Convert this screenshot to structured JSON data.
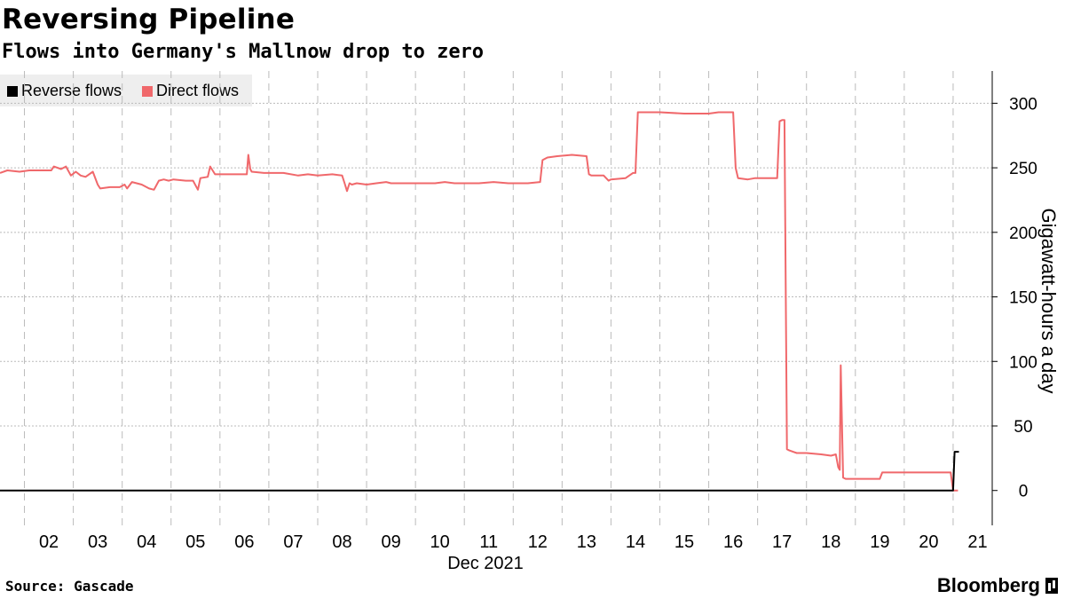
{
  "header": {
    "title": "Reversing Pipeline",
    "subtitle": "Flows into Germany's Mallnow drop to zero"
  },
  "footer": {
    "source": "Source: Gascade",
    "brand": "Bloomberg"
  },
  "colors": {
    "reverse": "#000000",
    "direct": "#f0686b",
    "grid": "#bbbbbb",
    "legend_bg": "#eeeeee"
  },
  "chart_data": {
    "type": "line",
    "title": "Reversing Pipeline",
    "subtitle": "Flows into Germany's Mallnow drop to zero",
    "xlabel": "Dec 2021",
    "ylabel": "Gigawatt-hours a day",
    "x_unit": "day of December 2021",
    "xlim": [
      1.5,
      21.8
    ],
    "ylim": [
      -27,
      325
    ],
    "y_ticks": [
      0,
      50,
      100,
      150,
      200,
      250,
      300
    ],
    "x_ticks": [
      2,
      3,
      4,
      5,
      6,
      7,
      8,
      9,
      10,
      11,
      12,
      13,
      14,
      15,
      16,
      17,
      18,
      19,
      20,
      21
    ],
    "x_tick_labels": [
      "02",
      "03",
      "04",
      "05",
      "06",
      "07",
      "08",
      "09",
      "10",
      "11",
      "12",
      "13",
      "14",
      "15",
      "16",
      "17",
      "18",
      "19",
      "20",
      "21"
    ],
    "grid": true,
    "legend_position": "top-left",
    "series": [
      {
        "name": "Reverse flows",
        "color": "#000000",
        "x": [
          1.5,
          20.95,
          21.0,
          21.03,
          21.12
        ],
        "y": [
          0,
          0,
          0,
          30,
          30
        ]
      },
      {
        "name": "Direct flows",
        "color": "#f0686b",
        "x": [
          1.5,
          1.65,
          1.9,
          2.1,
          2.3,
          2.55,
          2.6,
          2.75,
          2.85,
          2.95,
          3.05,
          3.15,
          3.25,
          3.4,
          3.5,
          3.55,
          3.75,
          3.95,
          4.05,
          4.1,
          4.2,
          4.4,
          4.55,
          4.65,
          4.75,
          4.85,
          4.95,
          5.05,
          5.3,
          5.45,
          5.55,
          5.6,
          5.75,
          5.8,
          5.9,
          6.05,
          6.3,
          6.55,
          6.58,
          6.62,
          6.65,
          6.9,
          7.3,
          7.6,
          7.8,
          8.0,
          8.3,
          8.5,
          8.55,
          8.6,
          8.65,
          8.7,
          8.8,
          9.0,
          9.2,
          9.4,
          9.5,
          9.8,
          10.1,
          10.4,
          10.6,
          10.8,
          11.0,
          11.3,
          11.6,
          11.9,
          12.1,
          12.3,
          12.55,
          12.6,
          12.7,
          12.9,
          13.2,
          13.5,
          13.55,
          13.6,
          13.85,
          13.95,
          14.0,
          14.3,
          14.45,
          14.5,
          14.55,
          15.0,
          15.5,
          16.0,
          16.2,
          16.25,
          16.5,
          16.55,
          16.6,
          16.8,
          16.95,
          17.0,
          17.4,
          17.45,
          17.5,
          17.55,
          17.6,
          17.65,
          17.8,
          18.0,
          18.3,
          18.5,
          18.6,
          18.65,
          18.68,
          18.7,
          18.75,
          18.8,
          19.2,
          19.5,
          19.55,
          19.9,
          20.5,
          20.95,
          21.0,
          21.02,
          21.1
        ],
        "y": [
          246,
          248,
          247,
          248,
          248,
          248,
          251,
          249,
          251,
          244,
          247,
          244,
          243,
          247,
          237,
          234,
          235,
          235,
          237,
          234,
          239,
          237,
          234,
          233,
          240,
          241,
          240,
          241,
          240,
          240,
          233,
          242,
          243,
          251,
          245,
          245,
          245,
          245,
          260,
          249,
          247,
          246,
          246,
          244,
          245,
          244,
          245,
          244,
          238,
          232,
          238,
          237,
          238,
          237,
          238,
          239,
          238,
          238,
          238,
          238,
          239,
          238,
          238,
          238,
          239,
          238,
          238,
          238,
          239,
          256,
          258,
          259,
          260,
          259,
          245,
          244,
          244,
          240,
          241,
          242,
          246,
          246,
          293,
          293,
          292,
          292,
          293,
          293,
          293,
          250,
          242,
          241,
          242,
          242,
          242,
          286,
          287,
          287,
          32,
          31,
          29,
          29,
          28,
          27,
          28,
          18,
          16,
          97,
          10,
          9,
          9,
          9,
          14,
          14,
          14,
          14,
          0,
          0,
          0
        ]
      }
    ]
  }
}
